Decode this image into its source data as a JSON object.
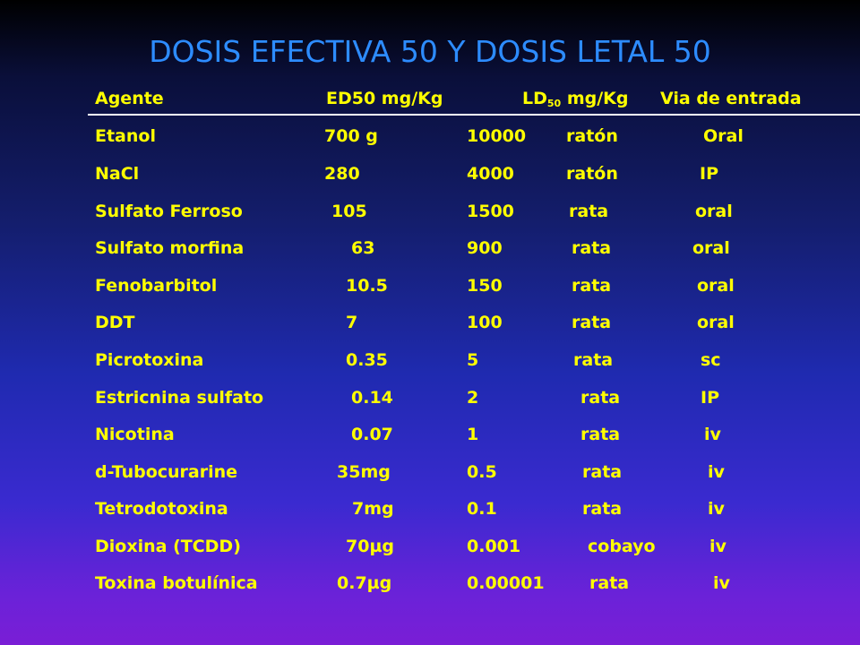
{
  "title": "DOSIS EFECTIVA 50 Y DOSIS LETAL 50",
  "header": {
    "agent": "Agente",
    "ed50": "ED50 mg/Kg",
    "ld50_prefix": "LD",
    "ld50_sub": "50",
    "ld50_suffix": " mg/Kg",
    "route": "Via de entrada"
  },
  "rows": [
    {
      "agent": "Etanol",
      "ed50": "700  g",
      "ld50": "10000",
      "species": "ratón",
      "route": "Oral"
    },
    {
      "agent": "NaCl",
      "ed50": "280",
      "ld50": "4000",
      "species": "ratón",
      "route": "IP"
    },
    {
      "agent": "Sulfato Ferroso",
      "ed50": "105",
      "ld50": "1500",
      "species": "rata",
      "route": "oral"
    },
    {
      "agent": "Sulfato morfina",
      "ed50": "63",
      "ld50": "900",
      "species": "rata",
      "route": "oral"
    },
    {
      "agent": "Fenobarbitol",
      "ed50": "10.5",
      "ld50": "150",
      "species": "rata",
      "route": "oral"
    },
    {
      "agent": "DDT",
      "ed50": "7",
      "ld50": "100",
      "species": "rata",
      "route": "oral"
    },
    {
      "agent": "Picrotoxina",
      "ed50": "0.35",
      "ld50": "5",
      "species": "rata",
      "route": "sc"
    },
    {
      "agent": "Estricnina sulfato",
      "ed50": "0.14",
      "ld50": "2",
      "species": "rata",
      "route": "IP"
    },
    {
      "agent": "Nicotina",
      "ed50": "0.07",
      "ld50": "1",
      "species": "rata",
      "route": "iv"
    },
    {
      "agent": "d-Tubocurarine",
      "ed50": "35mg",
      "ld50": "0.5",
      "species": "rata",
      "route": "iv"
    },
    {
      "agent": "Tetrodotoxina",
      "ed50": "7mg",
      "ld50": "0.1",
      "species": "rata",
      "route": "iv"
    },
    {
      "agent": "Dioxina (TCDD)",
      "ed50": "70µg",
      "ld50": "0.001",
      "species": "cobayo",
      "route": "iv"
    },
    {
      "agent": "Toxina botulínica",
      "ed50": "0.7µg",
      "ld50": "0.00001",
      "species": "rata",
      "route": "iv"
    }
  ]
}
